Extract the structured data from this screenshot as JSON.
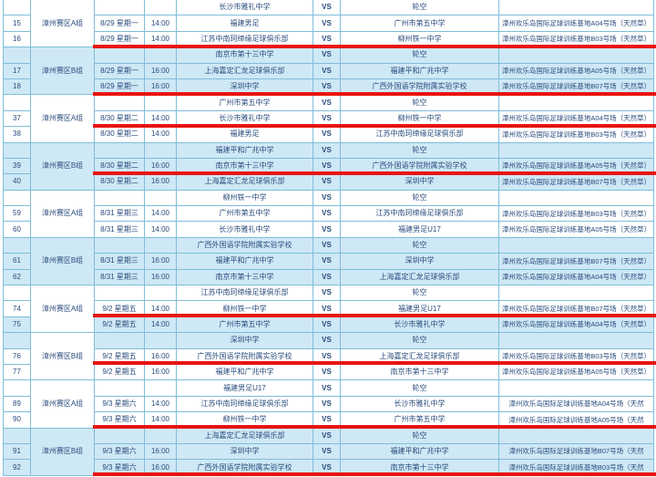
{
  "colors": {
    "row_blue": "#cfe8f6",
    "grid_border": "#7fbdd9",
    "text_navy": "#2a4c7c",
    "highlight_red": "#e81410"
  },
  "table": {
    "vs_label": "VS",
    "bye_label": "轮空",
    "rows": [
      {
        "no": "",
        "group": "漳州赛区A组",
        "group_tint": "white",
        "date": "",
        "time": "",
        "home": "长沙市雅礼中学",
        "away": "轮空",
        "venue": "",
        "tint": "white",
        "red": false,
        "large": false
      },
      {
        "no": "15",
        "date": "8/29 星期一",
        "time": "14:00",
        "home": "福建男足",
        "away": "广州市第五中学",
        "venue": "漳州欢乐岛国际足球训练基地A04号场（天然草）",
        "tint": "white",
        "red": false,
        "large": false
      },
      {
        "no": "16",
        "date": "8/29 星期一",
        "time": "14:00",
        "home": "江苏中南珂缔缘足球俱乐部",
        "away": "柳州铁一中学",
        "venue": "漳州欢乐岛国际足球训练基地B03号场（天然草）",
        "tint": "white",
        "red": true,
        "large": false
      },
      {
        "no": "",
        "group": "漳州赛区B组",
        "group_tint": "blue",
        "date": "",
        "time": "",
        "home": "南京市第十三中学",
        "away": "轮空",
        "venue": "",
        "tint": "blue",
        "red": false,
        "large": false
      },
      {
        "no": "17",
        "date": "8/29 星期一",
        "time": "16:00",
        "home": "上海嘉定汇龙足球俱乐部",
        "away": "福建平和广兆中学",
        "venue": "漳州欢乐岛国际足球训练基地A05号场（天然草）",
        "tint": "blue",
        "red": false,
        "large": false
      },
      {
        "no": "18",
        "date": "8/29 星期一",
        "time": "16:00",
        "home": "深圳中学",
        "away": "广西外国语学院附属实验学校",
        "venue": "漳州欢乐岛国际足球训练基地B07号场（天然草）",
        "tint": "blue",
        "red": true,
        "large": false
      },
      {
        "no": "",
        "group": "漳州赛区A组",
        "group_tint": "white",
        "date": "",
        "time": "",
        "home": "广州市第五中学",
        "away": "轮空",
        "venue": "",
        "tint": "white",
        "red": false,
        "large": false
      },
      {
        "no": "37",
        "date": "8/30 星期二",
        "time": "14:00",
        "home": "长沙市雅礼中学",
        "away": "柳州铁一中学",
        "venue": "漳州欢乐岛国际足球训练基地A04号场（天然草）",
        "tint": "white",
        "red": true,
        "large": false
      },
      {
        "no": "38",
        "date": "8/30 星期二",
        "time": "14:00",
        "home": "福建男足",
        "away": "江苏中南珂缔缘足球俱乐部",
        "venue": "漳州欢乐岛国际足球训练基地B03号场（天然草）",
        "tint": "white",
        "red": false,
        "large": false
      },
      {
        "no": "",
        "group": "漳州赛区B组",
        "group_tint": "blue",
        "date": "",
        "time": "",
        "home": "福建平和广兆中学",
        "away": "轮空",
        "venue": "",
        "tint": "blue",
        "red": false,
        "large": false
      },
      {
        "no": "39",
        "date": "8/30 星期二",
        "time": "16:00",
        "home": "南京市第十三中学",
        "away": "广西外国语学院附属实验学校",
        "venue": "漳州欢乐岛国际足球训练基地A05号场（天然草）",
        "tint": "blue",
        "red": true,
        "large": false
      },
      {
        "no": "40",
        "date": "8/30 星期二",
        "time": "16:00",
        "home": "上海嘉定汇龙足球俱乐部",
        "away": "深圳中学",
        "venue": "漳州欢乐岛国际足球训练基地B07号场（天然草）",
        "tint": "blue",
        "red": false,
        "large": false
      },
      {
        "no": "",
        "group": "漳州赛区A组",
        "group_tint": "white",
        "date": "",
        "time": "",
        "home": "柳州铁一中学",
        "away": "轮空",
        "venue": "",
        "tint": "white",
        "red": false,
        "large": false
      },
      {
        "no": "59",
        "date": "8/31 星期三",
        "time": "14:00",
        "home": "广州市第五中学",
        "away": "江苏中南珂缔缘足球俱乐部",
        "venue": "漳州欢乐岛国际足球训练基地B03号场（天然草）",
        "tint": "white",
        "red": false,
        "large": false
      },
      {
        "no": "60",
        "date": "8/31 星期三",
        "time": "14:00",
        "home": "长沙市雅礼中学",
        "away": "福建男足U17",
        "venue": "漳州欢乐岛国际足球训练基地A05号场（天然草）",
        "tint": "white",
        "red": false,
        "large": false
      },
      {
        "no": "",
        "group": "漳州赛区B组",
        "group_tint": "blue",
        "date": "",
        "time": "",
        "home": "广西外国语学院附属实验学校",
        "away": "轮空",
        "venue": "",
        "tint": "blue",
        "red": false,
        "large": false
      },
      {
        "no": "61",
        "date": "8/31 星期三",
        "time": "16:00",
        "home": "福建平和广兆中学",
        "away": "深圳中学",
        "venue": "漳州欢乐岛国际足球训练基地B07号场（天然草）",
        "tint": "blue",
        "red": false,
        "large": false
      },
      {
        "no": "62",
        "date": "8/31 星期三",
        "time": "16:00",
        "home": "南京市第十三中学",
        "away": "上海嘉定汇龙足球俱乐部",
        "venue": "漳州欢乐岛国际足球训练基地A04号场（天然草）",
        "tint": "blue",
        "red": false,
        "large": false
      },
      {
        "no": "",
        "group": "漳州赛区A组",
        "group_tint": "white",
        "date": "",
        "time": "",
        "home": "江苏中南珂缔缘足球俱乐部",
        "away": "轮空",
        "venue": "",
        "tint": "white",
        "red": false,
        "large": false
      },
      {
        "no": "74",
        "date": "9/2 星期五",
        "time": "14:00",
        "home": "柳州铁一中学",
        "away": "福建男足U17",
        "venue": "漳州欢乐岛国际足球训练基地B07号场（天然草）",
        "tint": "white",
        "red": true,
        "large": false
      },
      {
        "no": "75",
        "date": "9/2 星期五",
        "time": "14:00",
        "home": "广州市第五中学",
        "away": "长沙市雅礼中学",
        "venue": "漳州欢乐岛国际足球训练基地A04号场（天然草）",
        "tint": "blue",
        "red": false,
        "large": false
      },
      {
        "no": "",
        "group": "漳州赛区B组",
        "group_tint": "white",
        "date": "",
        "time": "",
        "home": "深圳中学",
        "away": "轮空",
        "venue": "",
        "tint": "blue",
        "red": false,
        "large": false
      },
      {
        "no": "76",
        "date": "9/2 星期五",
        "time": "16:00",
        "home": "广西外国语学院附属实验学校",
        "away": "上海嘉定汇龙足球俱乐部",
        "venue": "漳州欢乐岛国际足球训练基地B03号场（天然草）",
        "tint": "white",
        "red": true,
        "large": false
      },
      {
        "no": "77",
        "date": "9/2 星期五",
        "time": "16:00",
        "home": "福建平和广兆中学",
        "away": "南京市第十三中学",
        "venue": "漳州欢乐岛国际足球训练基地A05号场（天然草）",
        "tint": "white",
        "red": false,
        "large": false
      },
      {
        "no": "",
        "group": "漳州赛区A组",
        "group_tint": "white",
        "date": "",
        "time": "",
        "home": "福建男足U17",
        "away": "轮空",
        "venue": "",
        "tint": "white",
        "red": false,
        "large": true
      },
      {
        "no": "89",
        "date": "9/3 星期六",
        "time": "14:00",
        "home": "江苏中南珂缔缘足球俱乐部",
        "away": "长沙市雅礼中学",
        "venue": "漳州欢乐岛国际足球训练基地A04号场（天然",
        "tint": "white",
        "red": false,
        "large": true
      },
      {
        "no": "90",
        "date": "9/3 星期六",
        "time": "14:00",
        "home": "柳州铁一中学",
        "away": "广州市第五中学",
        "venue": "漳州欢乐岛国际足球训练基地A05号场（天然",
        "tint": "white",
        "red": true,
        "large": true
      },
      {
        "no": "",
        "group": "漳州赛区B组",
        "group_tint": "blue",
        "date": "",
        "time": "",
        "home": "上海嘉定汇龙足球俱乐部",
        "away": "轮空",
        "venue": "",
        "tint": "blue",
        "red": false,
        "large": true
      },
      {
        "no": "91",
        "date": "9/3 星期六",
        "time": "16:00",
        "home": "深圳中学",
        "away": "福建平和广兆中学",
        "venue": "漳州欢乐岛国际足球训练基地B07号场（天然",
        "tint": "blue",
        "red": false,
        "large": true
      },
      {
        "no": "92",
        "date": "9/3 星期六",
        "time": "16:00",
        "home": "广西外国语学院附属实验学校",
        "away": "南京市第十三中学",
        "venue": "漳州欢乐岛国际足球训练基地B03号场（天然",
        "tint": "blue",
        "red": true,
        "large": true
      }
    ]
  }
}
